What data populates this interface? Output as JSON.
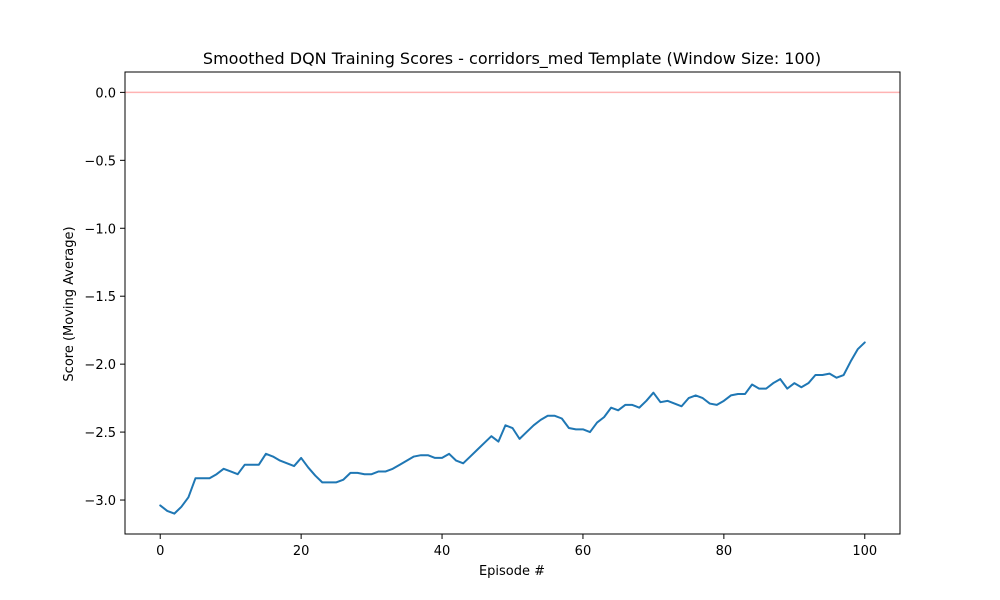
{
  "chart_data": {
    "type": "line",
    "title": "Smoothed DQN Training Scores - corridors_med Template (Window Size: 100)",
    "xlabel": "Episode #",
    "ylabel": "Score (Moving Average)",
    "xlim": [
      -5,
      105
    ],
    "ylim": [
      -3.25,
      0.15
    ],
    "xticks": [
      0,
      20,
      40,
      60,
      80,
      100
    ],
    "xtick_labels": [
      "0",
      "20",
      "40",
      "60",
      "80",
      "100"
    ],
    "yticks": [
      0.0,
      -0.5,
      -1.0,
      -1.5,
      -2.0,
      -2.5,
      -3.0
    ],
    "ytick_labels": [
      "0.0",
      "−0.5",
      "−1.0",
      "−1.5",
      "−2.0",
      "−2.5",
      "−3.0"
    ],
    "grid": false,
    "colors": {
      "line": "#1f77b4",
      "reference": "#ffb3b3"
    },
    "reference_line": {
      "y": 0.0
    },
    "series": [
      {
        "x": [
          0,
          1,
          2,
          3,
          4,
          5,
          6,
          7,
          8,
          9,
          10,
          11,
          12,
          13,
          14,
          15,
          16,
          17,
          18,
          19,
          20,
          21,
          22,
          23,
          24,
          25,
          26,
          27,
          28,
          29,
          30,
          31,
          32,
          33,
          34,
          35,
          36,
          37,
          38,
          39,
          40,
          41,
          42,
          43,
          44,
          45,
          46,
          47,
          48,
          49,
          50,
          51,
          52,
          53,
          54,
          55,
          56,
          57,
          58,
          59,
          60,
          61,
          62,
          63,
          64,
          65,
          66,
          67,
          68,
          69,
          70,
          71,
          72,
          73,
          74,
          75,
          76,
          77,
          78,
          79,
          80,
          81,
          82,
          83,
          84,
          85,
          86,
          87,
          88,
          89,
          90,
          91,
          92,
          93,
          94,
          95,
          96,
          97,
          98,
          99,
          100
        ],
        "y": [
          -3.04,
          -3.08,
          -3.1,
          -3.05,
          -2.98,
          -2.84,
          -2.84,
          -2.84,
          -2.81,
          -2.77,
          -2.79,
          -2.81,
          -2.74,
          -2.74,
          -2.74,
          -2.66,
          -2.68,
          -2.71,
          -2.73,
          -2.75,
          -2.69,
          -2.76,
          -2.82,
          -2.87,
          -2.87,
          -2.87,
          -2.85,
          -2.8,
          -2.8,
          -2.81,
          -2.81,
          -2.79,
          -2.79,
          -2.77,
          -2.74,
          -2.71,
          -2.68,
          -2.67,
          -2.67,
          -2.69,
          -2.69,
          -2.66,
          -2.71,
          -2.73,
          -2.68,
          -2.63,
          -2.58,
          -2.53,
          -2.57,
          -2.45,
          -2.47,
          -2.55,
          -2.5,
          -2.45,
          -2.41,
          -2.38,
          -2.38,
          -2.4,
          -2.47,
          -2.48,
          -2.48,
          -2.5,
          -2.43,
          -2.39,
          -2.32,
          -2.34,
          -2.3,
          -2.3,
          -2.32,
          -2.27,
          -2.21,
          -2.28,
          -2.27,
          -2.29,
          -2.31,
          -2.25,
          -2.23,
          -2.25,
          -2.29,
          -2.3,
          -2.27,
          -2.23,
          -2.22,
          -2.22,
          -2.15,
          -2.18,
          -2.18,
          -2.14,
          -2.11,
          -2.18,
          -2.14,
          -2.17,
          -2.14,
          -2.08,
          -2.08,
          -2.07,
          -2.1,
          -2.08,
          -1.98,
          -1.89,
          -1.84
        ]
      }
    ]
  }
}
